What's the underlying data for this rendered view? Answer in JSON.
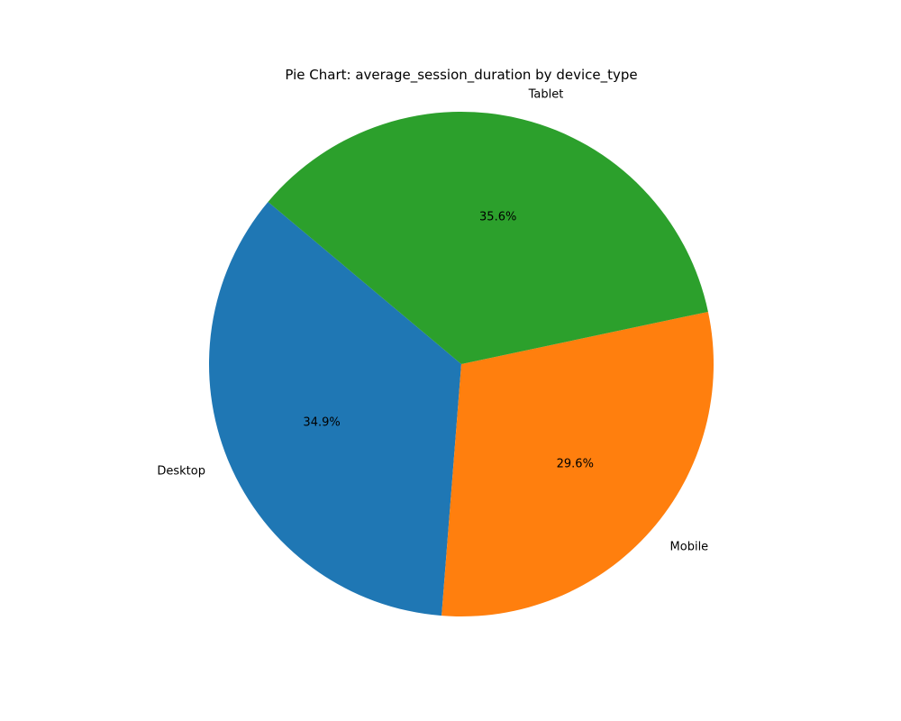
{
  "chart_data": {
    "type": "pie",
    "title": "Pie Chart: average_session_duration by device_type",
    "categories": [
      "Desktop",
      "Mobile",
      "Tablet"
    ],
    "values": [
      34.9,
      29.6,
      35.6
    ],
    "percent_labels": [
      "34.9%",
      "29.6%",
      "35.6%"
    ],
    "colors": [
      "#1f77b4",
      "#ff7f0e",
      "#2ca02c"
    ],
    "start_angle_deg": 140,
    "direction": "counterclockwise",
    "legend": "none"
  }
}
